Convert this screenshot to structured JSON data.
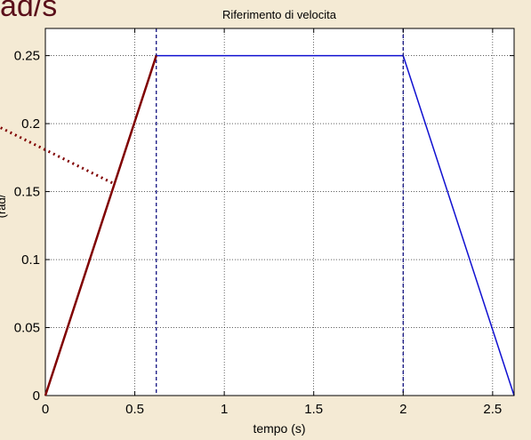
{
  "slide": {
    "corner_text": "ad/s",
    "rotated_fragment": "(rad/"
  },
  "chart_data": {
    "type": "line",
    "title": "Riferimento di velocita",
    "xlabel": "tempo (s)",
    "ylabel": "",
    "xlim": [
      0,
      2.62
    ],
    "ylim": [
      0,
      0.27
    ],
    "xticks": [
      0,
      0.5,
      1,
      1.5,
      2,
      2.5
    ],
    "xtick_labels": [
      "0",
      "0.5",
      "1",
      "1.5",
      "2",
      "2.5"
    ],
    "yticks": [
      0,
      0.05,
      0.1,
      0.15,
      0.2,
      0.25
    ],
    "ytick_labels": [
      "0",
      "0.05",
      "0.1",
      "0.15",
      "0.2",
      "0.25"
    ],
    "grid": true,
    "series": [
      {
        "x": [
          0,
          0.62,
          2.0,
          2.62
        ],
        "y": [
          0,
          0.25,
          0.25,
          0
        ],
        "color": "#1010d0",
        "style": "solid"
      }
    ],
    "vertical_lines": [
      {
        "x": 0.62,
        "color": "#101080",
        "style": "dashed"
      },
      {
        "x": 2.0,
        "color": "#101080",
        "style": "dashed"
      }
    ],
    "overlays": [
      {
        "name": "ramp-highlight",
        "x": [
          0,
          0.62
        ],
        "y": [
          0,
          0.25
        ],
        "color": "#800000",
        "style": "solid"
      },
      {
        "name": "pointer",
        "x": [
          -0.25,
          0.38
        ],
        "y": [
          0.197,
          0.156
        ],
        "color": "#800000",
        "style": "dotted"
      }
    ],
    "colors": {
      "background": "#f4ead4",
      "plot_background": "#ffffff",
      "accent": "#5a0f1a"
    }
  }
}
